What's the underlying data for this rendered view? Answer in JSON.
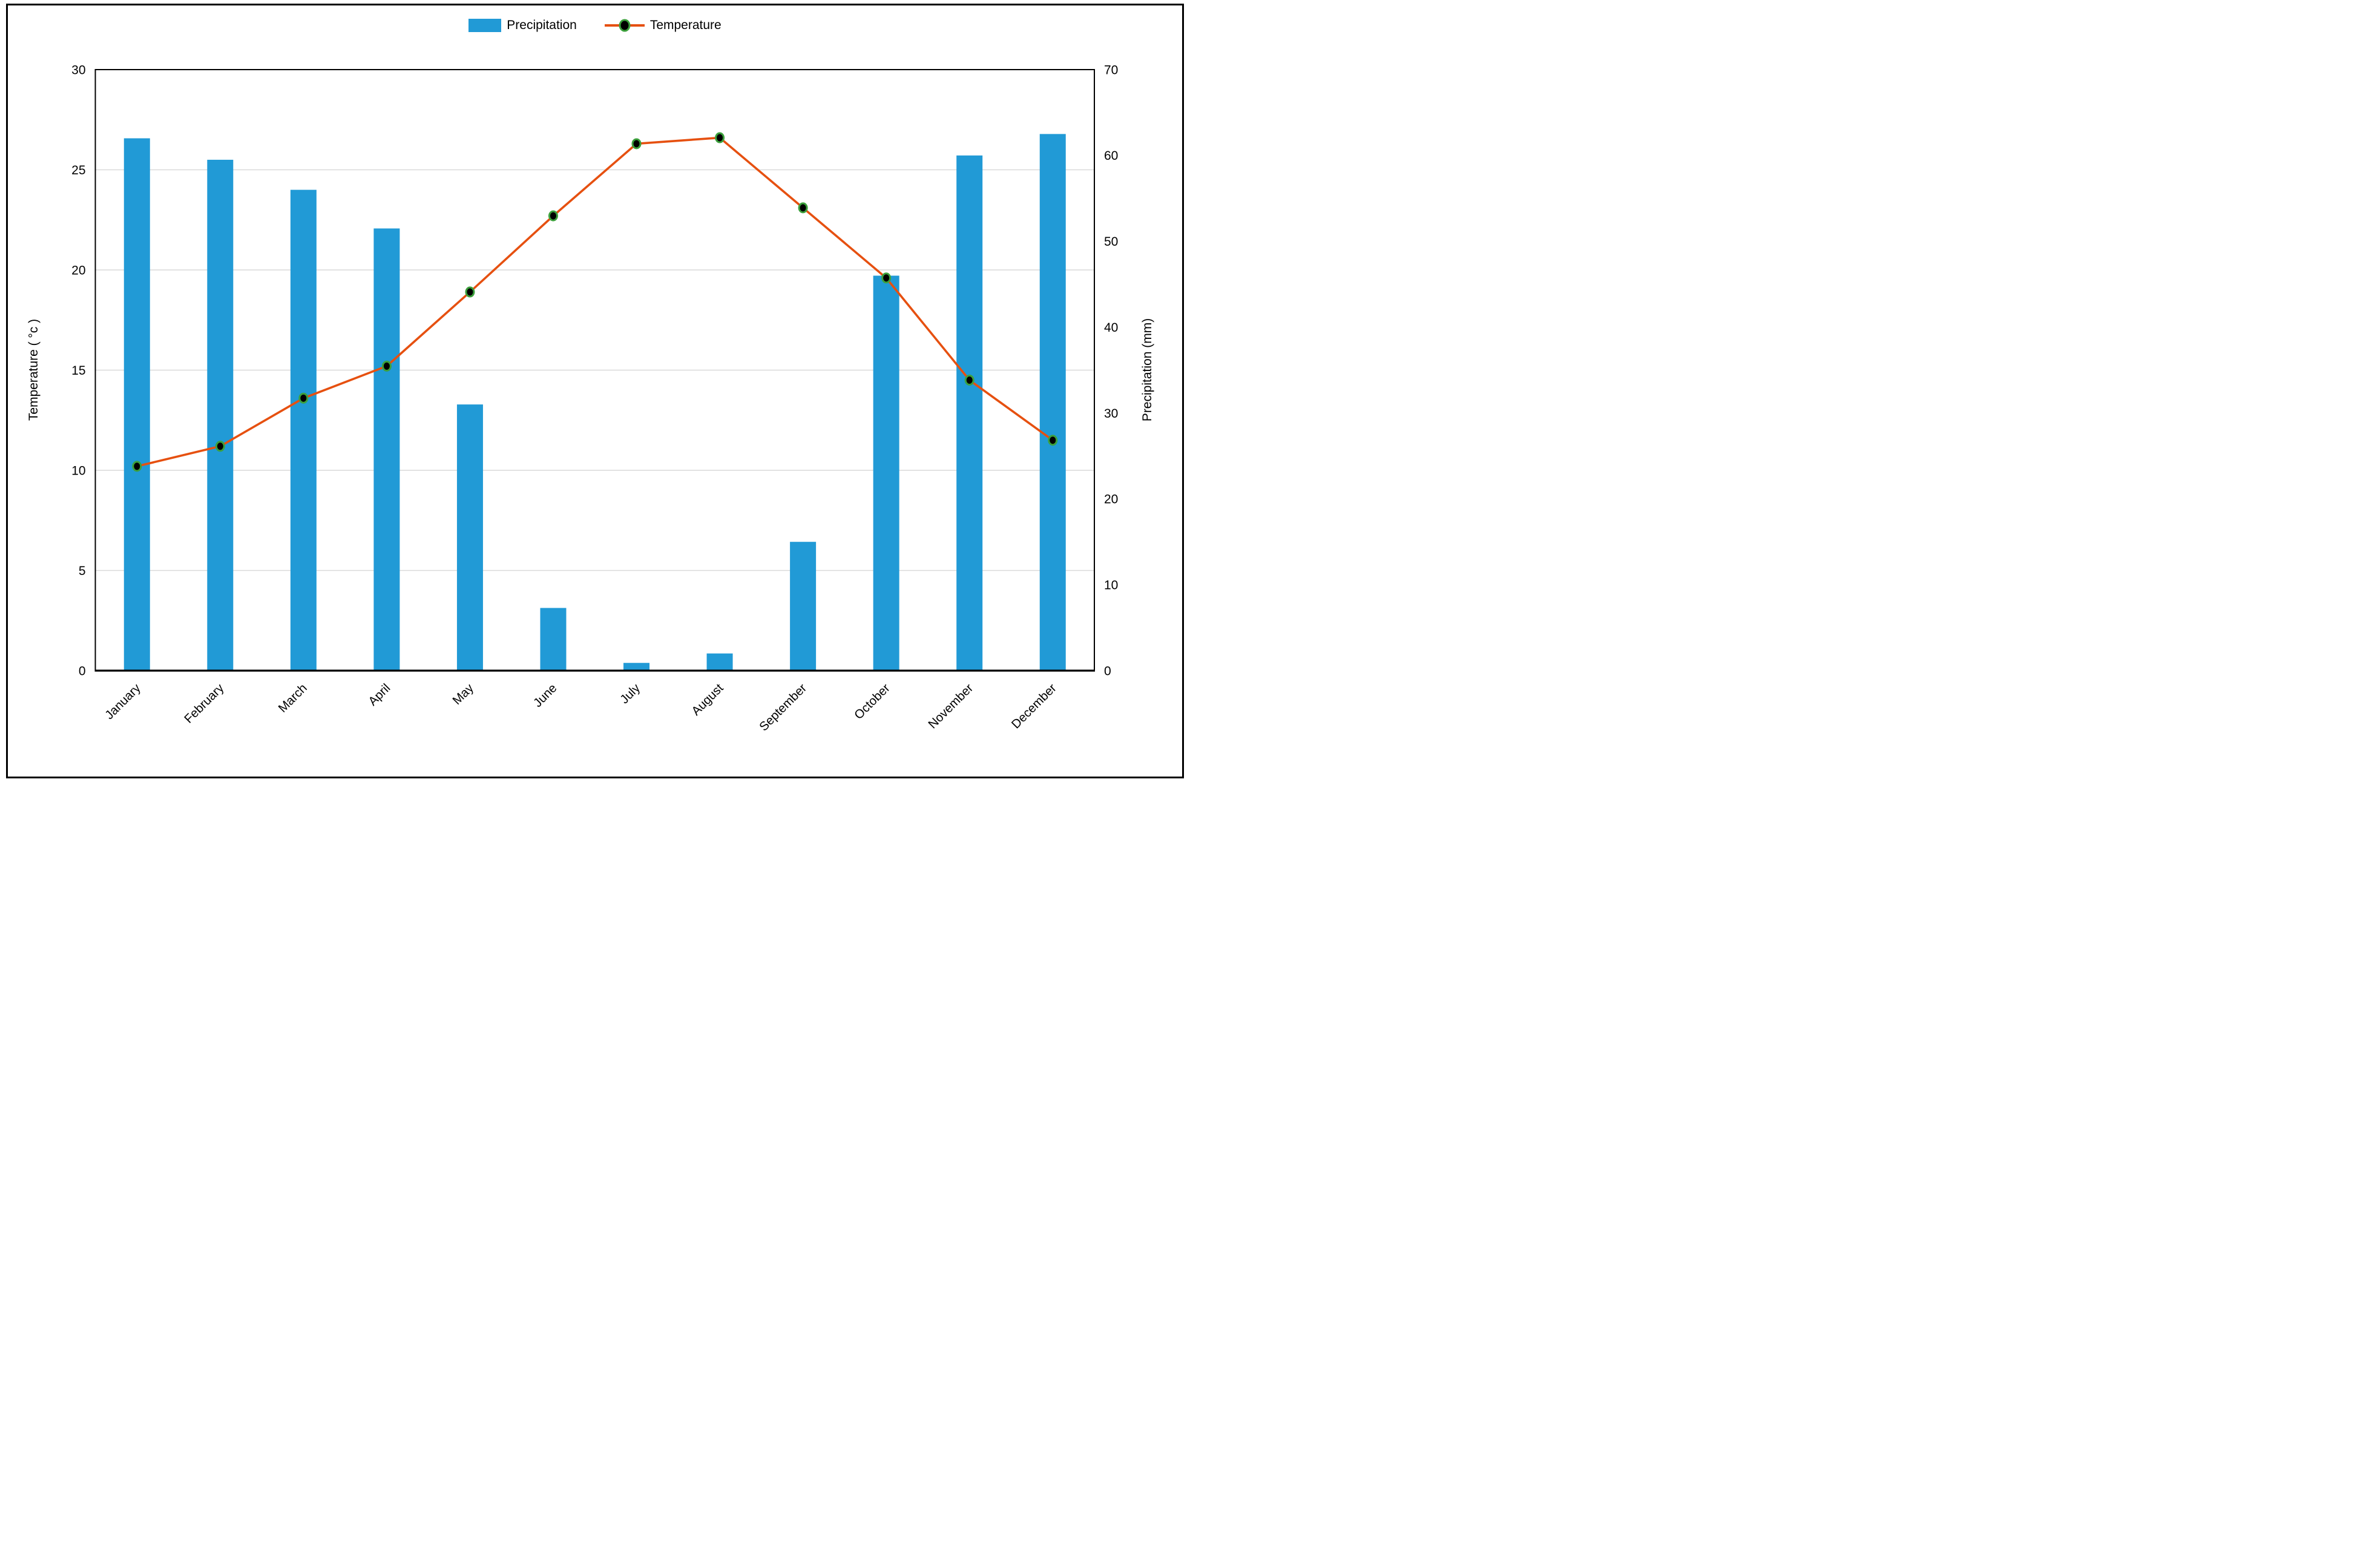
{
  "figure": {
    "background": "#ffffff",
    "border_color": "#000000"
  },
  "legend": {
    "items": [
      {
        "label": "Precipitation",
        "type": "swatch",
        "color": "#219AD6"
      },
      {
        "label": "Temperature",
        "type": "line-marker",
        "line_color": "#E65010",
        "marker_fill": "#000000",
        "marker_ring": "#3CA03C"
      }
    ]
  },
  "chart_data": {
    "type": "combo-bar-line",
    "title": "",
    "categories": [
      "January",
      "February",
      "March",
      "April",
      "May",
      "June",
      "July",
      "August",
      "September",
      "October",
      "November",
      "December"
    ],
    "series": [
      {
        "name": "Precipitation",
        "type": "bar",
        "axis": "right",
        "color": "#219AD6",
        "unit": "mm",
        "values": [
          62,
          59.5,
          56,
          51.5,
          31,
          7.3,
          0.9,
          2,
          15,
          46,
          60,
          62.5
        ]
      },
      {
        "name": "Temperature",
        "type": "line",
        "axis": "left",
        "color": "#E65010",
        "marker_fill": "#000000",
        "marker_ring": "#3CA03C",
        "unit": "°C",
        "values": [
          10.2,
          11.2,
          13.6,
          15.2,
          18.9,
          22.7,
          26.3,
          26.6,
          23.1,
          19.6,
          14.5,
          11.5
        ]
      }
    ],
    "axes": {
      "left": {
        "label": "Temperature ( °c )",
        "min": 0,
        "max": 30,
        "step": 5,
        "ticks": [
          0,
          5,
          10,
          15,
          20,
          25,
          30
        ]
      },
      "right": {
        "label": "Precipitation (mm)",
        "min": 0,
        "max": 70,
        "step": 10,
        "ticks": [
          0,
          10,
          20,
          30,
          40,
          50,
          60,
          70
        ]
      }
    },
    "grid": {
      "show_horizontal": true,
      "color": "#D9D9D9",
      "at_left_axis_ticks": true
    },
    "legend_position": "top",
    "x_label_rotation_deg": -45
  }
}
